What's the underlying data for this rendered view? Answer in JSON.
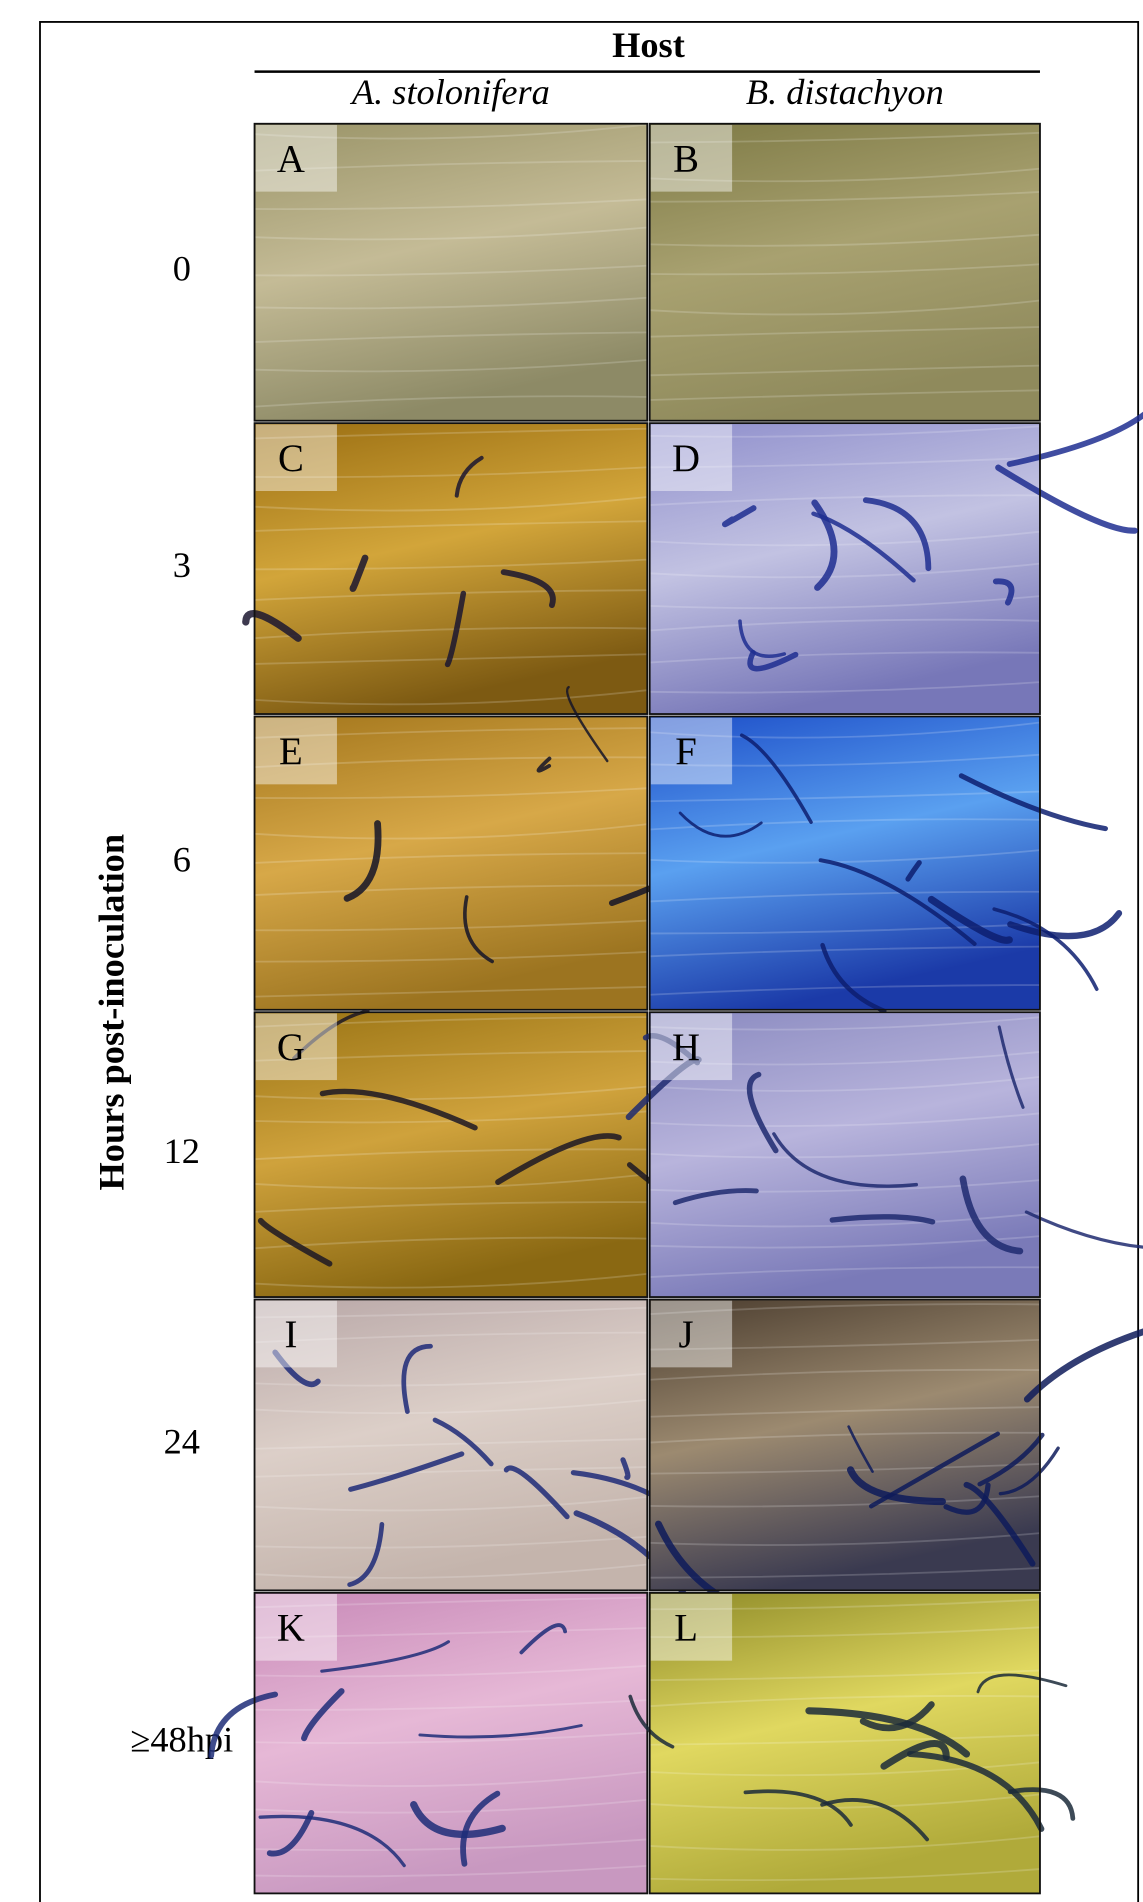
{
  "header": {
    "title": "Host"
  },
  "columns": [
    "A. stolonifera",
    "B. distachyon"
  ],
  "row_axis_label": "Hours post-inoculation",
  "rows": [
    {
      "label": "0",
      "panels": [
        "A",
        "B"
      ]
    },
    {
      "label": "3",
      "panels": [
        "C",
        "D"
      ]
    },
    {
      "label": "6",
      "panels": [
        "E",
        "F"
      ]
    },
    {
      "label": "12",
      "panels": [
        "G",
        "H"
      ]
    },
    {
      "label": "24",
      "panels": [
        "I",
        "J"
      ]
    },
    {
      "label": "≥48hpi",
      "panels": [
        "K",
        "L"
      ]
    }
  ]
}
